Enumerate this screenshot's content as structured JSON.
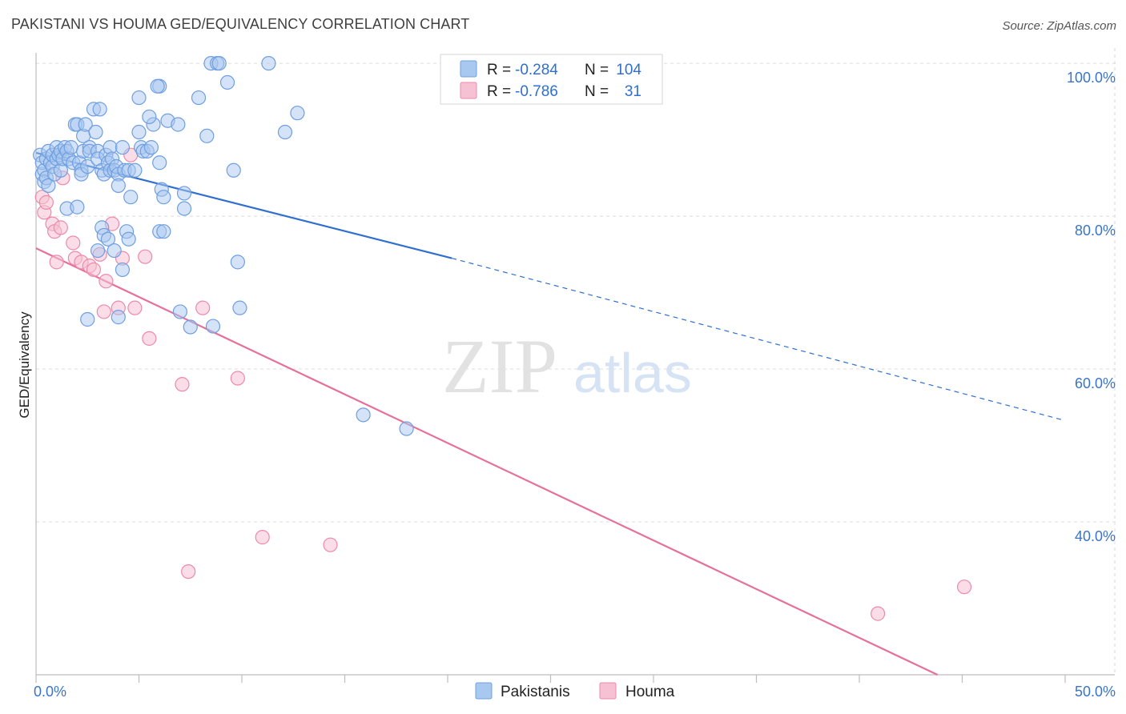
{
  "header": {
    "title": "PAKISTANI VS HOUMA GED/EQUIVALENCY CORRELATION CHART",
    "source": "Source: ZipAtlas.com"
  },
  "watermark": {
    "zip": "ZIP",
    "atlas": "atlas"
  },
  "legend_top": {
    "rows": [
      {
        "r_label": "R =",
        "r_value": "-0.284",
        "n_label": "N =",
        "n_value": "104",
        "color": "#a9c8f0"
      },
      {
        "r_label": "R =",
        "r_value": "-0.786",
        "n_label": "N =",
        "n_value": "31",
        "color": "#f6b8cc"
      }
    ]
  },
  "colors": {
    "pakistanis_fill": "#a9c8f0",
    "pakistanis_stroke": "#6f9fe0",
    "pakistanis_line": "#2f6fd0",
    "houma_fill": "#f6c1d2",
    "houma_stroke": "#ec8aab",
    "houma_line": "#e6709a",
    "grid": "#dcdcdc",
    "tick_label": "#3a74c9"
  },
  "chart_data": {
    "type": "scatter",
    "title": "PAKISTANI VS HOUMA GED/EQUIVALENCY CORRELATION CHART",
    "xlabel": "",
    "ylabel": "GED/Equivalency",
    "xlim": [
      0,
      50
    ],
    "ylim": [
      20,
      102
    ],
    "x_tick_labels": [
      {
        "value": 0,
        "label": "0.0%"
      },
      {
        "value": 50,
        "label": "50.0%"
      }
    ],
    "y_tick_labels": [
      {
        "value": 100,
        "label": "100.0%"
      },
      {
        "value": 80,
        "label": "80.0%"
      },
      {
        "value": 60,
        "label": "60.0%"
      },
      {
        "value": 40,
        "label": "40.0%"
      }
    ],
    "grid": true,
    "legend_position": "top-center",
    "series": [
      {
        "name": "Pakistanis",
        "r": -0.284,
        "n": 104,
        "trend": {
          "x0": 0,
          "y0": 88.3,
          "x1": 20.2,
          "y1": 74.5,
          "dashed_to_x": 49.8,
          "dashed_to_y": 53.4
        },
        "points": [
          [
            0.2,
            88
          ],
          [
            0.3,
            85.5
          ],
          [
            0.3,
            87
          ],
          [
            0.4,
            86
          ],
          [
            0.4,
            84.5
          ],
          [
            0.5,
            87.5
          ],
          [
            0.5,
            85
          ],
          [
            0.6,
            88.5
          ],
          [
            0.6,
            84
          ],
          [
            0.7,
            87
          ],
          [
            0.8,
            86.5
          ],
          [
            0.8,
            88
          ],
          [
            0.9,
            85.5
          ],
          [
            1.0,
            89
          ],
          [
            1.0,
            87.5
          ],
          [
            1.1,
            88
          ],
          [
            1.2,
            86
          ],
          [
            1.2,
            88.5
          ],
          [
            1.3,
            87.5
          ],
          [
            1.4,
            89
          ],
          [
            1.5,
            88.5
          ],
          [
            1.5,
            81
          ],
          [
            1.6,
            87.5
          ],
          [
            1.7,
            89
          ],
          [
            1.8,
            87
          ],
          [
            1.9,
            92
          ],
          [
            2.0,
            92
          ],
          [
            2.0,
            81.2
          ],
          [
            2.1,
            87
          ],
          [
            2.2,
            86
          ],
          [
            2.2,
            85.5
          ],
          [
            2.3,
            90.5
          ],
          [
            2.3,
            88.5
          ],
          [
            2.4,
            92
          ],
          [
            2.5,
            86.5
          ],
          [
            2.6,
            89
          ],
          [
            2.6,
            88.5
          ],
          [
            2.8,
            94
          ],
          [
            2.9,
            91
          ],
          [
            3.0,
            88.5
          ],
          [
            3.0,
            87.5
          ],
          [
            3.1,
            94
          ],
          [
            3.2,
            86
          ],
          [
            3.3,
            85.5
          ],
          [
            3.4,
            88
          ],
          [
            3.5,
            87
          ],
          [
            3.6,
            89
          ],
          [
            3.6,
            86
          ],
          [
            3.7,
            87.5
          ],
          [
            3.8,
            86
          ],
          [
            3.9,
            86.5
          ],
          [
            4.0,
            85.5
          ],
          [
            4.0,
            84
          ],
          [
            4.2,
            89
          ],
          [
            4.3,
            86
          ],
          [
            4.5,
            86
          ],
          [
            4.6,
            82.5
          ],
          [
            4.8,
            86
          ],
          [
            5.0,
            91
          ],
          [
            5.1,
            89
          ],
          [
            5.2,
            88.5
          ],
          [
            5.4,
            88.5
          ],
          [
            5.6,
            89
          ],
          [
            5.7,
            92
          ],
          [
            6.0,
            87
          ],
          [
            6.0,
            97
          ],
          [
            6.1,
            83.5
          ],
          [
            6.2,
            82.5
          ],
          [
            6.4,
            92.5
          ],
          [
            6.9,
            92
          ],
          [
            7.2,
            81
          ],
          [
            7.2,
            83
          ],
          [
            7.9,
            95.5
          ],
          [
            8.3,
            90.5
          ],
          [
            8.5,
            100
          ],
          [
            8.8,
            100
          ],
          [
            8.9,
            100
          ],
          [
            9.3,
            97.5
          ],
          [
            9.6,
            86
          ],
          [
            9.8,
            74
          ],
          [
            9.9,
            68
          ],
          [
            11.3,
            100
          ],
          [
            12.1,
            91
          ],
          [
            12.7,
            93.5
          ],
          [
            2.5,
            66.5
          ],
          [
            3.0,
            75.5
          ],
          [
            3.2,
            78.5
          ],
          [
            3.3,
            77.5
          ],
          [
            3.5,
            77
          ],
          [
            3.8,
            75.5
          ],
          [
            4.0,
            66.8
          ],
          [
            4.2,
            73
          ],
          [
            4.4,
            78
          ],
          [
            4.5,
            77
          ],
          [
            5.0,
            95.5
          ],
          [
            5.5,
            93
          ],
          [
            5.9,
            97
          ],
          [
            6.0,
            78
          ],
          [
            6.2,
            78
          ],
          [
            7.0,
            67.5
          ],
          [
            7.5,
            65.5
          ],
          [
            8.6,
            65.6
          ],
          [
            15.9,
            54
          ],
          [
            18.0,
            52.2
          ]
        ]
      },
      {
        "name": "Houma",
        "r": -0.786,
        "n": 31,
        "trend": {
          "x0": 0,
          "y0": 75.8,
          "x1": 43.8,
          "y1": 20
        },
        "points": [
          [
            0.3,
            82.5
          ],
          [
            0.4,
            80.5
          ],
          [
            0.5,
            81.8
          ],
          [
            0.8,
            79
          ],
          [
            0.9,
            78
          ],
          [
            1.0,
            74
          ],
          [
            1.2,
            78.5
          ],
          [
            1.3,
            85
          ],
          [
            1.8,
            76.5
          ],
          [
            1.9,
            74.5
          ],
          [
            2.2,
            74
          ],
          [
            2.6,
            73.5
          ],
          [
            2.8,
            73
          ],
          [
            3.1,
            75
          ],
          [
            3.3,
            67.5
          ],
          [
            3.4,
            71.5
          ],
          [
            3.7,
            79
          ],
          [
            4.0,
            68
          ],
          [
            4.2,
            74.5
          ],
          [
            4.6,
            88
          ],
          [
            4.8,
            68
          ],
          [
            5.3,
            74.7
          ],
          [
            5.5,
            64
          ],
          [
            7.1,
            58
          ],
          [
            7.4,
            33.5
          ],
          [
            8.1,
            68
          ],
          [
            9.8,
            58.8
          ],
          [
            11.0,
            38
          ],
          [
            14.3,
            37
          ],
          [
            40.9,
            28
          ],
          [
            45.1,
            31.5
          ]
        ]
      }
    ]
  }
}
